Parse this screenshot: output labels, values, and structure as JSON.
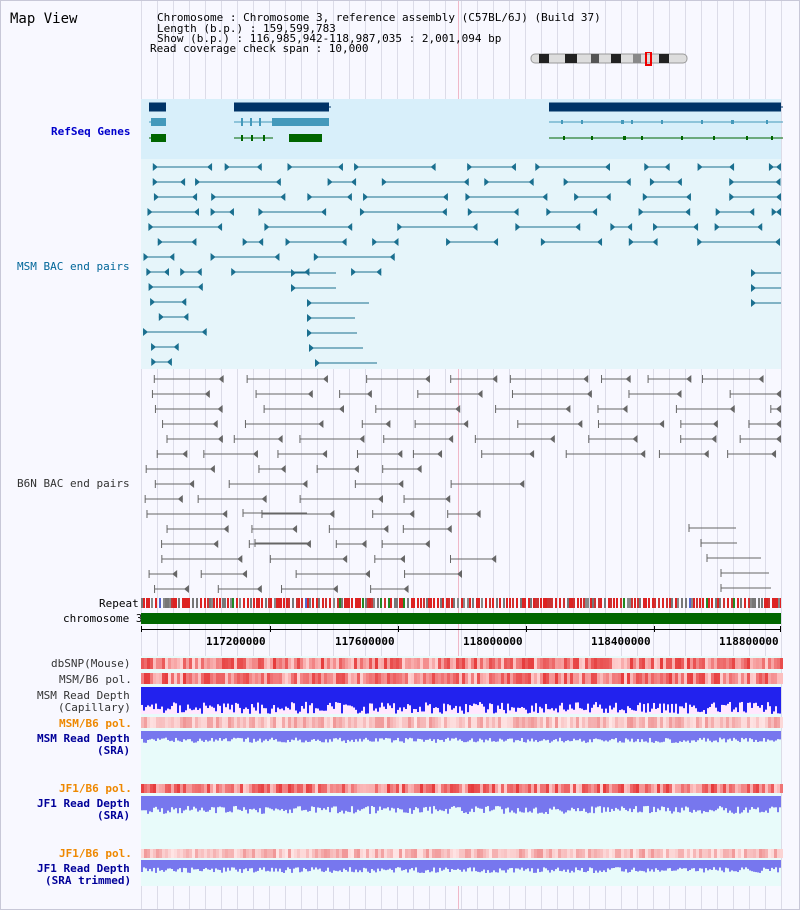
{
  "title": "Map View",
  "info": {
    "chromosome": "Chromosome     : Chromosome 3, reference assembly (C57BL/6J) (Build 37)",
    "length": "Length (b.p.) : 159,599,783",
    "show": "  Show (b.p.) : 116,985,942-118,987,035 : 2,001,094 bp",
    "coverage": "Read coverage check span : 10,000"
  },
  "tracks": {
    "refseq": "RefSeq Genes",
    "msm_bac": "MSM BAC end pairs",
    "b6n_bac": "B6N BAC end pairs",
    "repeat": "Repeat",
    "chromosome": "chromosome 3",
    "dbsnp": "dbSNP(Mouse)",
    "msm_b6_pol": "MSM/B6 pol.",
    "msm_depth_cap_1": "MSM Read Depth",
    "msm_depth_cap_2": "(Capillary)",
    "msm_b6_pol_2": "MSM/B6 pol.",
    "msm_depth_sra_1": "MSM Read Depth",
    "msm_depth_sra_2": "(SRA)",
    "jf1_b6_pol": "JF1/B6 pol.",
    "jf1_depth_sra_1": "JF1 Read Depth",
    "jf1_depth_sra_2": "(SRA)",
    "jf1_b6_pol_2": "JF1/B6 pol.",
    "jf1_depth_trim_1": "JF1 Read Depth",
    "jf1_depth_trim_2": "(SRA trimmed)"
  },
  "axis": {
    "ticks": [
      "117200000",
      "117600000",
      "118000000",
      "118400000",
      "118800000"
    ]
  },
  "colors": {
    "refseq_bg": "#d8effa",
    "msm_bg": "#e6f5fa",
    "gene_dark": "#003366",
    "gene_mid": "#4499bb",
    "gene_green": "#006600",
    "bac_teal": "#1a6f8f",
    "bac_grey": "#666666",
    "chromosome_green": "#006600",
    "depth_blue": "#2222ee",
    "depth_light": "#7777ee"
  }
}
